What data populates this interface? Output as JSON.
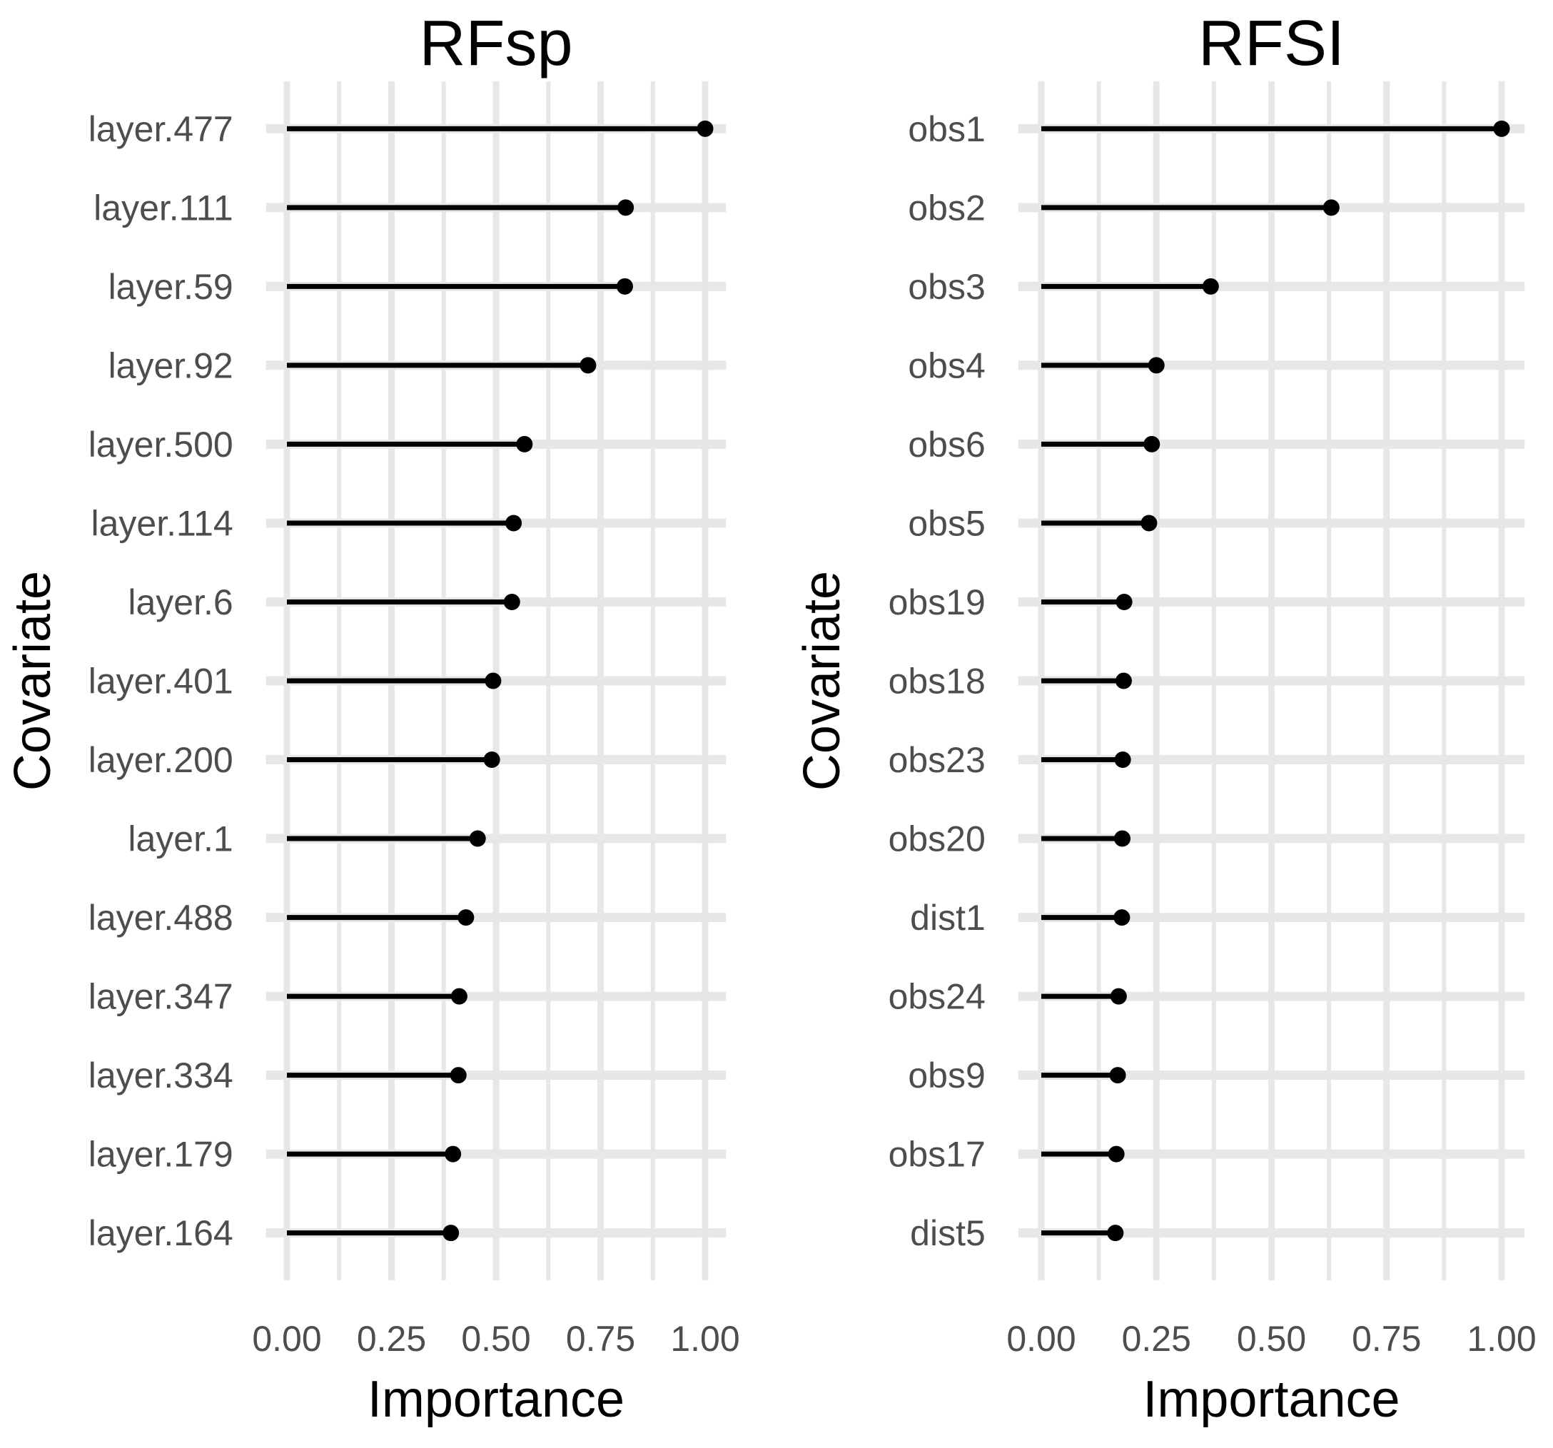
{
  "figure_background": "#ffffff",
  "colors": {
    "stem": "#000000",
    "point": "#000000",
    "grid": "#e7e7e7",
    "tick_text": "#4d4d4d",
    "axis_title_text": "#000000",
    "panel_title_text": "#000000",
    "background": "#ffffff"
  },
  "chart_data": [
    {
      "type": "bar",
      "variant": "horizontal-lollipop",
      "title": "RFsp",
      "xlabel": "Importance",
      "ylabel": "Covariate",
      "categories": [
        "layer.477",
        "layer.111",
        "layer.59",
        "layer.92",
        "layer.500",
        "layer.114",
        "layer.6",
        "layer.401",
        "layer.200",
        "layer.1",
        "layer.488",
        "layer.347",
        "layer.334",
        "layer.179",
        "layer.164"
      ],
      "values": [
        1.0,
        0.81,
        0.808,
        0.72,
        0.568,
        0.542,
        0.538,
        0.493,
        0.49,
        0.456,
        0.428,
        0.412,
        0.41,
        0.397,
        0.392
      ],
      "xlim": [
        0,
        1
      ],
      "xticks": [
        "0.00",
        "0.25",
        "0.50",
        "0.75",
        "1.00"
      ],
      "xtick_values": [
        0,
        0.25,
        0.5,
        0.75,
        1
      ],
      "minor_tick_values": [
        0.125,
        0.375,
        0.625,
        0.875
      ],
      "grid": {
        "major": true,
        "minor": true
      },
      "legend": "none"
    },
    {
      "type": "bar",
      "variant": "horizontal-lollipop",
      "title": "RFSI",
      "xlabel": "Importance",
      "ylabel": "Covariate",
      "categories": [
        "obs1",
        "obs2",
        "obs3",
        "obs4",
        "obs6",
        "obs5",
        "obs19",
        "obs18",
        "obs23",
        "obs20",
        "dist1",
        "obs24",
        "obs9",
        "obs17",
        "dist5"
      ],
      "values": [
        1.0,
        0.63,
        0.368,
        0.25,
        0.24,
        0.234,
        0.18,
        0.179,
        0.177,
        0.176,
        0.175,
        0.168,
        0.166,
        0.163,
        0.161
      ],
      "xlim": [
        0,
        1
      ],
      "xticks": [
        "0.00",
        "0.25",
        "0.50",
        "0.75",
        "1.00"
      ],
      "xtick_values": [
        0,
        0.25,
        0.5,
        0.75,
        1
      ],
      "minor_tick_values": [
        0.125,
        0.375,
        0.625,
        0.875
      ],
      "grid": {
        "major": true,
        "minor": true
      },
      "legend": "none"
    }
  ]
}
